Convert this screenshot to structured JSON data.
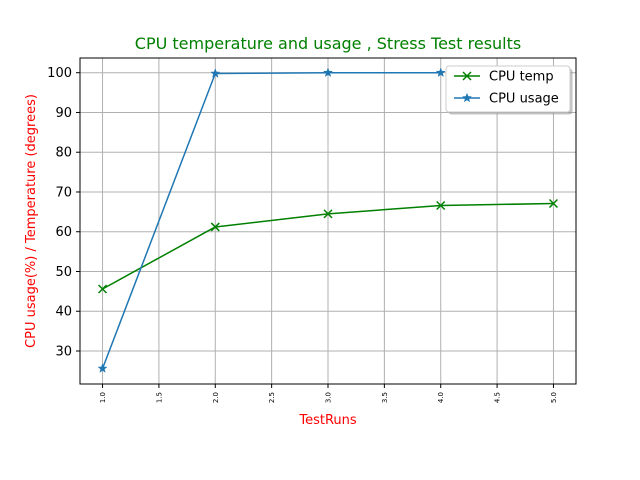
{
  "chart_data": {
    "type": "line",
    "title": "CPU temperature and usage , Stress Test results",
    "xlabel": "TestRuns",
    "ylabel": "CPU usage(%) / Temperature (degrees)",
    "title_color": "#008000",
    "label_color": "#ff0000",
    "xlim": [
      0.8,
      5.2
    ],
    "ylim": [
      21.7,
      103.7
    ],
    "x_ticks": [
      1.0,
      1.5,
      2.0,
      2.5,
      3.0,
      3.5,
      4.0,
      4.5,
      5.0
    ],
    "x_tick_labels": [
      "1.0",
      "1.5",
      "2.0",
      "2.5",
      "3.0",
      "3.5",
      "4.0",
      "4.5",
      "5.0"
    ],
    "y_ticks": [
      30,
      40,
      50,
      60,
      70,
      80,
      90,
      100
    ],
    "y_tick_labels": [
      "30",
      "40",
      "50",
      "60",
      "70",
      "80",
      "90",
      "100"
    ],
    "grid": true,
    "legend_position": "top-right",
    "series": [
      {
        "name": "CPU temp",
        "color": "#008000",
        "marker": "x",
        "x": [
          1.0,
          2.0,
          3.0,
          4.0,
          5.0
        ],
        "y": [
          45.6,
          61.2,
          64.5,
          66.6,
          67.1
        ]
      },
      {
        "name": "CPU usage",
        "color": "#1f77b4",
        "marker": "star",
        "x": [
          1.0,
          2.0,
          3.0,
          4.0
        ],
        "y": [
          25.6,
          99.8,
          100.0,
          100.0
        ]
      }
    ]
  }
}
